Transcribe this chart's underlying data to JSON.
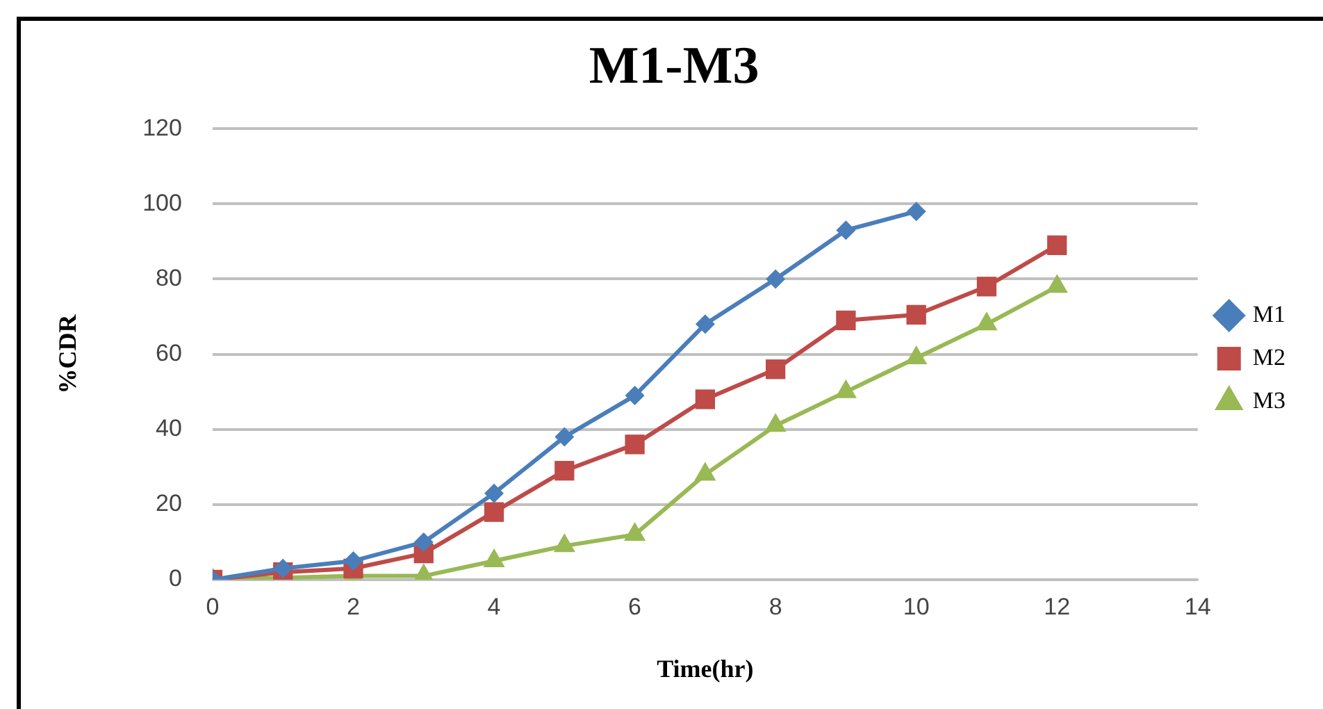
{
  "chart_data": {
    "type": "line",
    "title": "M1-M3",
    "xlabel": "Time(hr)",
    "ylabel": "%CDR",
    "series": [
      {
        "name": "M1",
        "color": "#4a7ebb",
        "marker": "diamond",
        "x": [
          0,
          1,
          2,
          3,
          4,
          5,
          6,
          7,
          8,
          9,
          10
        ],
        "values": [
          0,
          3,
          5,
          10,
          23,
          38,
          49,
          68,
          80,
          93,
          98
        ]
      },
      {
        "name": "M2",
        "color": "#be4b48",
        "marker": "square",
        "x": [
          0,
          1,
          2,
          3,
          4,
          5,
          6,
          7,
          8,
          9,
          10,
          11,
          12
        ],
        "values": [
          0,
          2,
          3,
          7,
          18,
          29,
          36,
          48,
          56,
          69,
          70.5,
          78,
          89
        ]
      },
      {
        "name": "M3",
        "color": "#98b954",
        "marker": "triangle",
        "x": [
          0,
          1,
          2,
          3,
          4,
          5,
          6,
          7,
          8,
          9,
          10,
          11,
          12
        ],
        "values": [
          0,
          0.5,
          1,
          1,
          5,
          9,
          12,
          28,
          41,
          50,
          59,
          68,
          78
        ]
      }
    ],
    "xlim": [
      0,
      14
    ],
    "xticks": [
      0,
      2,
      4,
      6,
      8,
      10,
      12,
      14
    ],
    "ylim": [
      0,
      120
    ],
    "yticks": [
      0,
      20,
      40,
      60,
      80,
      100,
      120
    ],
    "grid": "y",
    "legend": "right",
    "line_style": "solid"
  }
}
